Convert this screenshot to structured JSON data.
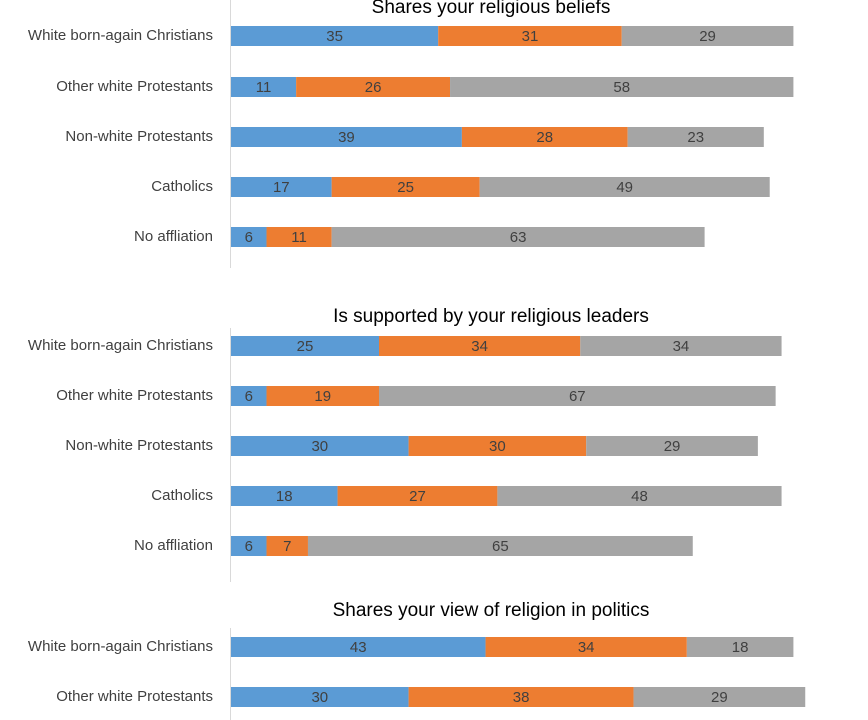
{
  "chart_data": [
    {
      "type": "bar",
      "orientation": "horizontal",
      "stacked": true,
      "title": "Shares your religious beliefs",
      "categories": [
        "White born-again Christians",
        "Other white Protestants",
        "Non-white Protestants",
        "Catholics",
        "No affliation"
      ],
      "series": [
        {
          "values": [
            35,
            11,
            39,
            17,
            6
          ]
        },
        {
          "values": [
            31,
            26,
            28,
            25,
            11
          ]
        },
        {
          "values": [
            29,
            58,
            23,
            49,
            63
          ]
        }
      ]
    },
    {
      "type": "bar",
      "orientation": "horizontal",
      "stacked": true,
      "title": "Is supported by your religious leaders",
      "categories": [
        "White born-again Christians",
        "Other white Protestants",
        "Non-white Protestants",
        "Catholics",
        "No affliation"
      ],
      "series": [
        {
          "values": [
            25,
            6,
            30,
            18,
            6
          ]
        },
        {
          "values": [
            34,
            19,
            30,
            27,
            7
          ]
        },
        {
          "values": [
            34,
            67,
            29,
            48,
            65
          ]
        }
      ]
    },
    {
      "type": "bar",
      "orientation": "horizontal",
      "stacked": true,
      "title": "Shares your view of religion in politics",
      "categories": [
        "White born-again Christians",
        "Other white Protestants"
      ],
      "series": [
        {
          "values": [
            43,
            30
          ]
        },
        {
          "values": [
            34,
            38
          ]
        },
        {
          "values": [
            18,
            29
          ]
        }
      ]
    }
  ],
  "colors": {
    "series": [
      "#5b9bd5",
      "#ed7d31",
      "#a5a5a5"
    ],
    "axis": "#d9d9d9",
    "text": "#404040"
  }
}
